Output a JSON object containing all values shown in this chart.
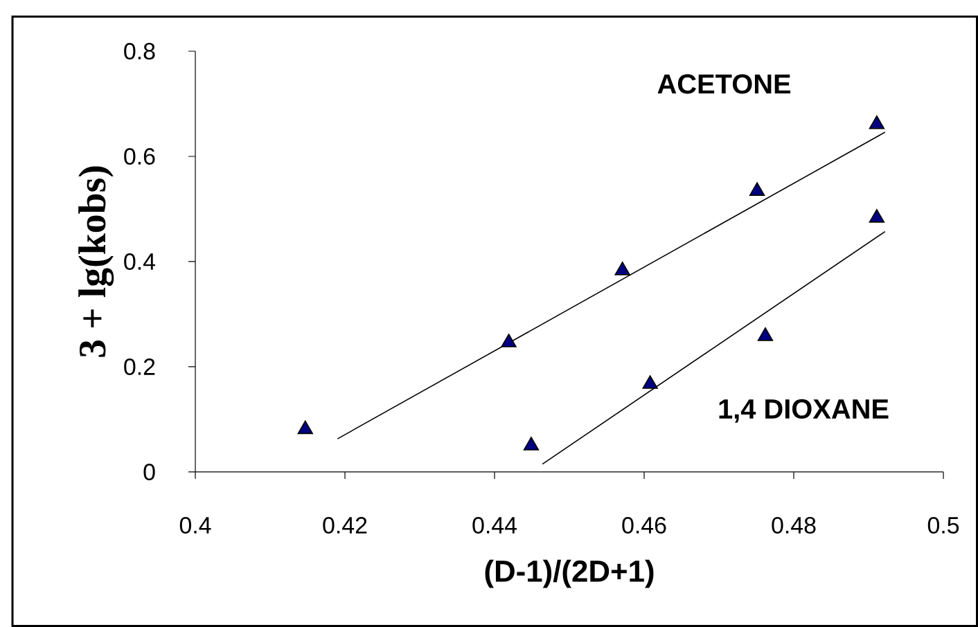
{
  "chart_data": {
    "type": "scatter",
    "xlabel": "(D-1)/(2D+1)",
    "ylabel": "3 + lg(kobs)",
    "xlim": [
      0.4,
      0.5
    ],
    "ylim": [
      0,
      0.8
    ],
    "xticks": [
      0.4,
      0.42,
      0.44,
      0.46,
      0.48,
      0.5
    ],
    "yticks": [
      0,
      0.2,
      0.4,
      0.6,
      0.8
    ],
    "grid": false,
    "legend": false,
    "marker": "triangle",
    "series": [
      {
        "color": "#000080",
        "x": [
          0.4147,
          0.4419,
          0.4571,
          0.4751,
          0.4911
        ],
        "values": [
          0.081,
          0.246,
          0.383,
          0.534,
          0.661
        ]
      },
      {
        "color": "#000080",
        "x": [
          0.4449,
          0.4608,
          0.4762,
          0.4911
        ],
        "values": [
          0.05,
          0.167,
          0.258,
          0.483
        ]
      },
      {
        "type": "line",
        "color": "#000000",
        "marker": "none",
        "x": [
          0.419,
          0.4922
        ],
        "values": [
          0.063,
          0.646
        ]
      },
      {
        "type": "line",
        "color": "#000000",
        "marker": "none",
        "x": [
          0.4464,
          0.4922
        ],
        "values": [
          0.015,
          0.457
        ]
      }
    ],
    "annotations": [
      "ACETONE",
      "1,4 DIOXANE"
    ]
  }
}
